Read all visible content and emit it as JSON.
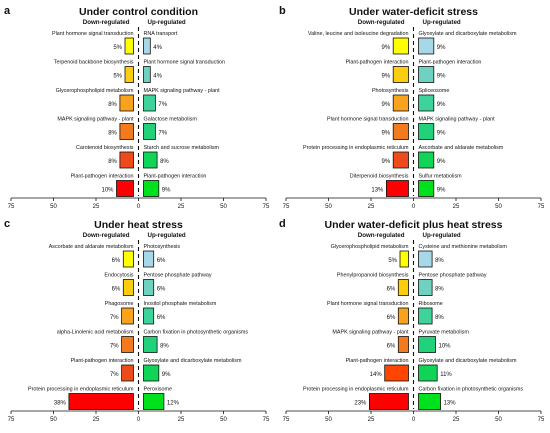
{
  "chart_data": [
    {
      "letter": "a",
      "type": "bar",
      "title": "Under control condition",
      "down_header": "Down-regulated",
      "up_header": "Up-regulated",
      "xlim": [
        -75,
        75
      ],
      "xticks": [
        "75",
        "50",
        "25",
        "0",
        "25",
        "50",
        "75"
      ],
      "down": [
        {
          "label": "Plant hormone signal transduction",
          "value": 5,
          "pct": "5%",
          "color": "#ffff00"
        },
        {
          "label": "Terpenoid backbone biosynthesis",
          "value": 5,
          "pct": "5%",
          "color": "#fccd0f"
        },
        {
          "label": "Glycerophospholipid metabolism",
          "value": 8,
          "pct": "8%",
          "color": "#f8a21e"
        },
        {
          "label": "MAPK signaling pathway - plant",
          "value": 8,
          "pct": "8%",
          "color": "#f47a1f"
        },
        {
          "label": "Carotenoid biosynthesis",
          "value": 8,
          "pct": "8%",
          "color": "#ee4b1c"
        },
        {
          "label": "Plant-pathogen interaction",
          "value": 10,
          "pct": "10%",
          "color": "#ff0000"
        }
      ],
      "up": [
        {
          "label": "RNA transport",
          "value": 4,
          "pct": "4%",
          "color": "#a6d8e8"
        },
        {
          "label": "Plant hormone signal transduction",
          "value": 4,
          "pct": "4%",
          "color": "#6fd2c0"
        },
        {
          "label": "MAPK signaling pathway - plant",
          "value": 7,
          "pct": "7%",
          "color": "#3dd39a"
        },
        {
          "label": "Galactose metabolism",
          "value": 7,
          "pct": "7%",
          "color": "#22d27a"
        },
        {
          "label": "Starch and sucrose metabolism",
          "value": 8,
          "pct": "8%",
          "color": "#10d456"
        },
        {
          "label": "Plant-pathogen interaction",
          "value": 9,
          "pct": "9%",
          "color": "#00e11e"
        }
      ]
    },
    {
      "letter": "b",
      "type": "bar",
      "title": "Under water-deficit stress",
      "down_header": "Down-regulated",
      "up_header": "Up-regulated",
      "xlim": [
        -75,
        75
      ],
      "xticks": [
        "75",
        "50",
        "25",
        "0",
        "25",
        "50",
        "75"
      ],
      "down": [
        {
          "label": "Valine, leucine and isoleucine degradation",
          "value": 9,
          "pct": "9%",
          "color": "#ffff00"
        },
        {
          "label": "Plant-pathogen interaction",
          "value": 9,
          "pct": "9%",
          "color": "#fccd0f"
        },
        {
          "label": "Photosynthesis",
          "value": 9,
          "pct": "9%",
          "color": "#f8a21e"
        },
        {
          "label": "Plant hormone signal transduction",
          "value": 9,
          "pct": "9%",
          "color": "#f47a1f"
        },
        {
          "label": "Protein processing in endoplasmic reticulum",
          "value": 9,
          "pct": "9%",
          "color": "#ee4b1c"
        },
        {
          "label": "Diterpenoid biosynthesis",
          "value": 13,
          "pct": "13%",
          "color": "#ff0000"
        }
      ],
      "up": [
        {
          "label": "Glyoxylate and dicarboxylate metabolism",
          "value": 9,
          "pct": "9%",
          "color": "#a6d8e8"
        },
        {
          "label": "Plant-pathogen interaction",
          "value": 9,
          "pct": "9%",
          "color": "#6fd2c0"
        },
        {
          "label": "Spliceosome",
          "value": 9,
          "pct": "9%",
          "color": "#3dd39a"
        },
        {
          "label": "MAPK signaling pathway - plant",
          "value": 9,
          "pct": "9%",
          "color": "#22d27a"
        },
        {
          "label": "Ascorbate and aldarate metabolism",
          "value": 9,
          "pct": "9%",
          "color": "#10d456"
        },
        {
          "label": "Sulfur metabolism",
          "value": 9,
          "pct": "9%",
          "color": "#00e11e"
        }
      ]
    },
    {
      "letter": "c",
      "type": "bar",
      "title": "Under heat stress",
      "down_header": "Down-regulated",
      "up_header": "Up-regulated",
      "xlim": [
        -75,
        75
      ],
      "xticks": [
        "75",
        "50",
        "25",
        "0",
        "25",
        "50",
        "75"
      ],
      "down": [
        {
          "label": "Ascorbate and aldarate metabolism",
          "value": 6,
          "pct": "6%",
          "color": "#ffff00"
        },
        {
          "label": "Endocytosis",
          "value": 6,
          "pct": "6%",
          "color": "#fccd0f"
        },
        {
          "label": "Phagosome",
          "value": 7,
          "pct": "7%",
          "color": "#f8a21e"
        },
        {
          "label": "alpha-Linolenic acid metabolism",
          "value": 7,
          "pct": "7%",
          "color": "#f47a1f"
        },
        {
          "label": "Plant-pathogen interaction",
          "value": 7,
          "pct": "7%",
          "color": "#ee4b1c"
        },
        {
          "label": "Protein processing in endoplasmic reticulum",
          "value": 38,
          "pct": "38%",
          "color": "#ff0000"
        }
      ],
      "up": [
        {
          "label": "Photosynthesis",
          "value": 6,
          "pct": "6%",
          "color": "#a6d8e8"
        },
        {
          "label": "Pentose phosphate pathway",
          "value": 6,
          "pct": "6%",
          "color": "#6fd2c0"
        },
        {
          "label": "Inositol phosphate metabolism",
          "value": 6,
          "pct": "6%",
          "color": "#3dd39a"
        },
        {
          "label": "Carbon fixation in photosynthetic organisms",
          "value": 8,
          "pct": "8%",
          "color": "#22d27a"
        },
        {
          "label": "Glyoxylate and dicarboxylate metabolism",
          "value": 9,
          "pct": "9%",
          "color": "#10d456"
        },
        {
          "label": "Peroxisome",
          "value": 12,
          "pct": "12%",
          "color": "#00e11e"
        }
      ]
    },
    {
      "letter": "d",
      "type": "bar",
      "title": "Under water-deficit plus heat stress",
      "down_header": "Down-regulated",
      "up_header": "Up-regulated",
      "xlim": [
        -75,
        75
      ],
      "xticks": [
        "75",
        "50",
        "25",
        "0",
        "25",
        "50",
        "75"
      ],
      "down": [
        {
          "label": "Glycerophospholipid metabolism",
          "value": 5,
          "pct": "5%",
          "color": "#ffff00"
        },
        {
          "label": "Phenylpropanoid biosynthesis",
          "value": 6,
          "pct": "6%",
          "color": "#fccd0f"
        },
        {
          "label": "Plant hormone signal transduction",
          "value": 6,
          "pct": "6%",
          "color": "#f8a21e"
        },
        {
          "label": "MAPK signaling pathway - plant",
          "value": 6,
          "pct": "6%",
          "color": "#f47a1f"
        },
        {
          "label": "Plant-pathogen interaction",
          "value": 14,
          "pct": "14%",
          "color": "#ff4500"
        },
        {
          "label": "Protein processing in endoplasmic reticulum",
          "value": 23,
          "pct": "23%",
          "color": "#ff0000"
        }
      ],
      "up": [
        {
          "label": "Cysteine and methionine metabolism",
          "value": 8,
          "pct": "8%",
          "color": "#a6d8e8"
        },
        {
          "label": "Pentose phosphate pathway",
          "value": 8,
          "pct": "8%",
          "color": "#6fd2c0"
        },
        {
          "label": "Ribosome",
          "value": 8,
          "pct": "8%",
          "color": "#3dd39a"
        },
        {
          "label": "Pyruvate metabolism",
          "value": 10,
          "pct": "10%",
          "color": "#22d27a"
        },
        {
          "label": "Glyoxylate and dicarboxylate metabolism",
          "value": 11,
          "pct": "11%",
          "color": "#10d456"
        },
        {
          "label": "Carbon fixation in photosynthetic organisms",
          "value": 13,
          "pct": "13%",
          "color": "#00e11e"
        }
      ]
    }
  ]
}
